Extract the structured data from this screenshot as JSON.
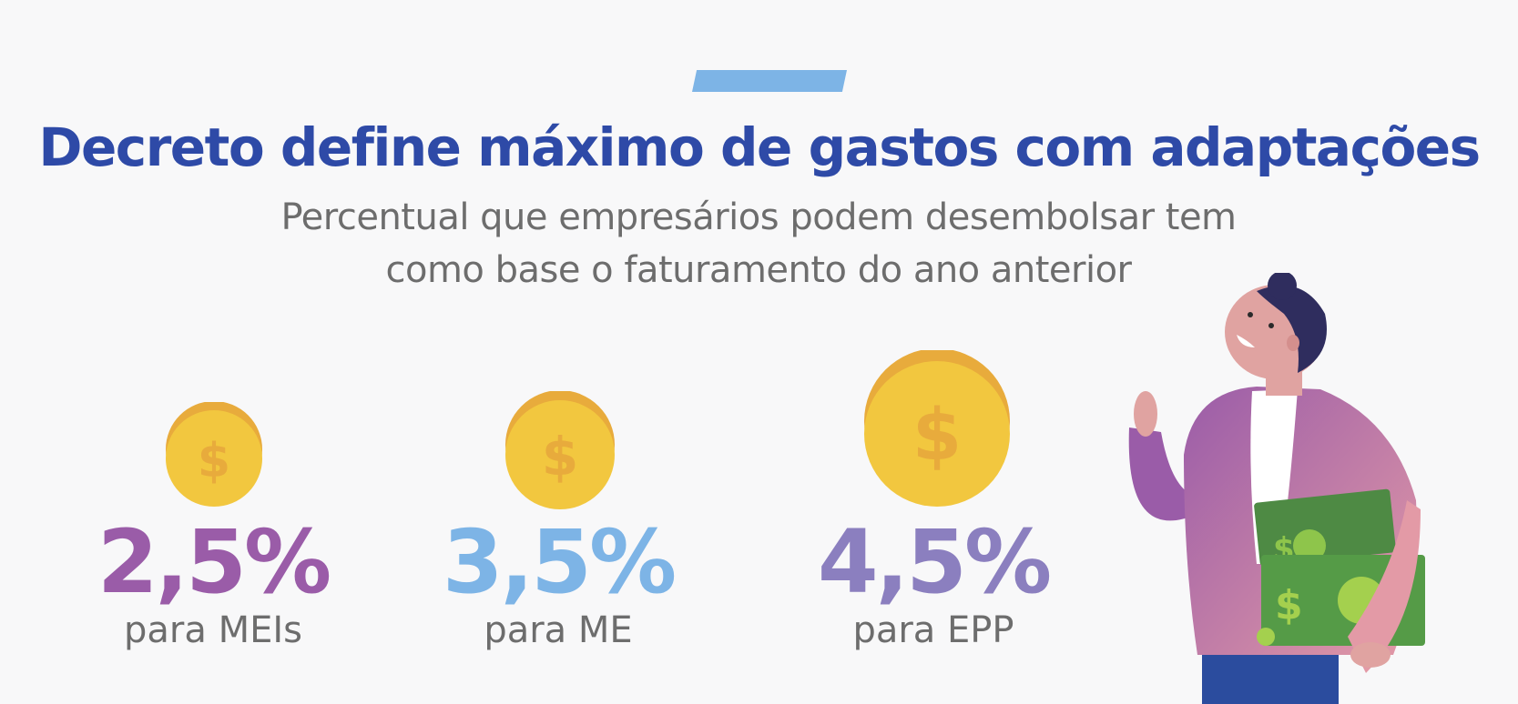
{
  "header": {
    "title": "Decreto define máximo de gastos com adaptações",
    "subtitle_line1": "Percentual que empresários podem desembolsar tem",
    "subtitle_line2": "como base o faturamento do ano anterior"
  },
  "stats": [
    {
      "value": "2,5%",
      "label": "para MEIs",
      "color": "#9a5ca8"
    },
    {
      "value": "3,5%",
      "label": "para ME",
      "color": "#7db4e6"
    },
    {
      "value": "4,5%",
      "label": "para EPP",
      "color": "#8b7fbf"
    }
  ],
  "colors": {
    "title": "#2e4aa7",
    "accent_bar": "#7db4e6",
    "coin_face": "#f2c73f",
    "coin_rim": "#e8ab3c",
    "text_gray": "#6d6d6d"
  },
  "icons": {
    "coin": "dollar-coin-icon",
    "illustration": "person-holding-cash-illustration"
  }
}
